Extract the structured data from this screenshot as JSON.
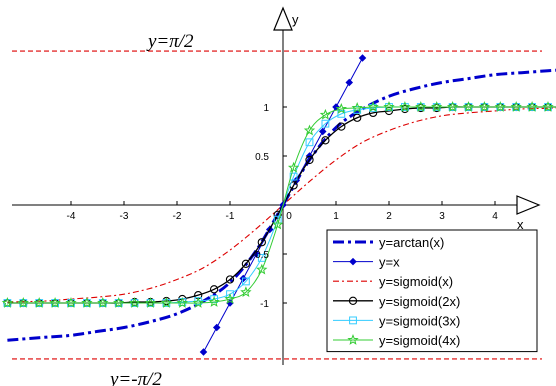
{
  "chart_data": {
    "type": "line",
    "title": "",
    "xlabel": "x",
    "ylabel": "y",
    "xlim": [
      -5.2,
      5.3
    ],
    "ylim": [
      -1.65,
      1.75
    ],
    "x_ticks": [
      {
        "value": -4,
        "label": "-4"
      },
      {
        "value": -3,
        "label": "-3"
      },
      {
        "value": -2,
        "label": "-2"
      },
      {
        "value": -1,
        "label": "-1"
      },
      {
        "value": 0,
        "label": "0"
      },
      {
        "value": 1,
        "label": "1"
      },
      {
        "value": 2,
        "label": "2"
      },
      {
        "value": 3,
        "label": "3"
      },
      {
        "value": 4,
        "label": "4"
      }
    ],
    "y_ticks": [
      {
        "value": 1,
        "label": "1"
      },
      {
        "value": 0.5,
        "label": "0.5"
      },
      {
        "value": -0.5,
        "label": "-0.5"
      },
      {
        "value": -1,
        "label": "-1"
      }
    ],
    "grid": false,
    "legend_position": "bottom-right",
    "annotations": [
      {
        "text": "y=π/2",
        "y": 1.5708,
        "position": "top-left"
      },
      {
        "text": "y=-π/2",
        "y": -1.5708,
        "position": "bottom-left"
      }
    ],
    "series": [
      {
        "name": "y=arctan(x)",
        "color": "#0000cc",
        "style": "dash-dot",
        "x": [
          -5.2,
          -4.5,
          -4,
          -3.5,
          -3,
          -2.5,
          -2,
          -1.5,
          -1,
          -0.5,
          0,
          0.5,
          1,
          1.5,
          2,
          2.5,
          3,
          3.5,
          4,
          4.5,
          5,
          5.3
        ],
        "y": [
          -1.38,
          -1.35,
          -1.33,
          -1.29,
          -1.25,
          -1.19,
          -1.11,
          -0.98,
          -0.79,
          -0.46,
          0,
          0.46,
          0.79,
          0.98,
          1.11,
          1.19,
          1.25,
          1.29,
          1.33,
          1.35,
          1.37,
          1.38
        ]
      },
      {
        "name": "y=x",
        "color": "#0000cc",
        "style": "solid",
        "marker": "diamond",
        "x": [
          -1.5,
          -1.25,
          -1.0,
          -0.75,
          -0.5,
          -0.25,
          0,
          0.25,
          0.5,
          0.75,
          1.0,
          1.25,
          1.5
        ],
        "y": [
          -1.5,
          -1.25,
          -1.0,
          -0.75,
          -0.5,
          -0.25,
          0,
          0.25,
          0.5,
          0.75,
          1.0,
          1.25,
          1.5
        ]
      },
      {
        "name": "y=sigmoid(x)",
        "color": "#dd0000",
        "style": "dash-dot-thin",
        "x": [
          -5.2,
          -4.5,
          -4,
          -3.5,
          -3,
          -2.5,
          -2,
          -1.5,
          -1,
          -0.5,
          0,
          0.5,
          1,
          1.5,
          2,
          2.5,
          3,
          3.5,
          4,
          4.5,
          5.3
        ],
        "y": [
          -0.99,
          -0.98,
          -0.96,
          -0.94,
          -0.91,
          -0.85,
          -0.76,
          -0.64,
          -0.46,
          -0.24,
          0,
          0.24,
          0.46,
          0.64,
          0.76,
          0.85,
          0.91,
          0.94,
          0.96,
          0.98,
          0.99
        ]
      },
      {
        "name": "y=sigmoid(2x)",
        "color": "#000000",
        "style": "solid",
        "marker": "circle",
        "x": [
          -5.2,
          -4.9,
          -4.6,
          -4.3,
          -4.0,
          -3.7,
          -3.4,
          -3.1,
          -2.8,
          -2.5,
          -2.2,
          -1.9,
          -1.6,
          -1.3,
          -1.0,
          -0.7,
          -0.4,
          -0.1,
          0.2,
          0.5,
          0.8,
          1.1,
          1.4,
          1.7,
          2.0,
          2.3,
          2.6,
          2.9,
          3.2,
          3.5,
          3.8,
          4.1,
          4.4,
          4.7,
          5.0,
          5.3
        ],
        "y": [
          -1.0,
          -1.0,
          -1.0,
          -1.0,
          -1.0,
          -1.0,
          -1.0,
          -1.0,
          -0.99,
          -0.99,
          -0.98,
          -0.96,
          -0.92,
          -0.86,
          -0.76,
          -0.6,
          -0.38,
          -0.1,
          0.2,
          0.46,
          0.66,
          0.8,
          0.89,
          0.94,
          0.96,
          0.98,
          0.99,
          0.99,
          1.0,
          1.0,
          1.0,
          1.0,
          1.0,
          1.0,
          1.0,
          1.0
        ]
      },
      {
        "name": "y=sigmoid(3x)",
        "color": "#33ccff",
        "style": "solid",
        "marker": "square",
        "x": [
          -5.2,
          -4.9,
          -4.6,
          -4.3,
          -4.0,
          -3.7,
          -3.4,
          -3.1,
          -2.8,
          -2.5,
          -2.2,
          -1.9,
          -1.6,
          -1.3,
          -1.0,
          -0.7,
          -0.4,
          -0.1,
          0.2,
          0.5,
          0.8,
          1.1,
          1.4,
          1.7,
          2.0,
          2.3,
          2.6,
          2.9,
          3.2,
          3.5,
          3.8,
          4.1,
          4.4,
          4.7,
          5.0,
          5.3
        ],
        "y": [
          -1.0,
          -1.0,
          -1.0,
          -1.0,
          -1.0,
          -1.0,
          -1.0,
          -1.0,
          -1.0,
          -1.0,
          -1.0,
          -0.99,
          -0.98,
          -0.96,
          -0.91,
          -0.78,
          -0.54,
          -0.15,
          0.29,
          0.64,
          0.83,
          0.93,
          0.97,
          0.99,
          1.0,
          1.0,
          1.0,
          1.0,
          1.0,
          1.0,
          1.0,
          1.0,
          1.0,
          1.0,
          1.0,
          1.0
        ]
      },
      {
        "name": "y=sigmoid(4x)",
        "color": "#33cc33",
        "style": "solid",
        "marker": "star",
        "x": [
          -5.2,
          -4.9,
          -4.6,
          -4.3,
          -4.0,
          -3.7,
          -3.4,
          -3.1,
          -2.8,
          -2.5,
          -2.2,
          -1.9,
          -1.6,
          -1.3,
          -1.0,
          -0.7,
          -0.4,
          -0.1,
          0.2,
          0.5,
          0.8,
          1.1,
          1.4,
          1.7,
          2.0,
          2.3,
          2.6,
          2.9,
          3.2,
          3.5,
          3.8,
          4.1,
          4.4,
          4.7,
          5.0,
          5.3
        ],
        "y": [
          -1.0,
          -1.0,
          -1.0,
          -1.0,
          -1.0,
          -1.0,
          -1.0,
          -1.0,
          -1.0,
          -1.0,
          -1.0,
          -1.0,
          -1.0,
          -0.99,
          -0.96,
          -0.89,
          -0.66,
          -0.2,
          0.38,
          0.76,
          0.92,
          0.98,
          0.99,
          1.0,
          1.0,
          1.0,
          1.0,
          1.0,
          1.0,
          1.0,
          1.0,
          1.0,
          1.0,
          1.0,
          1.0,
          1.0
        ]
      }
    ]
  }
}
